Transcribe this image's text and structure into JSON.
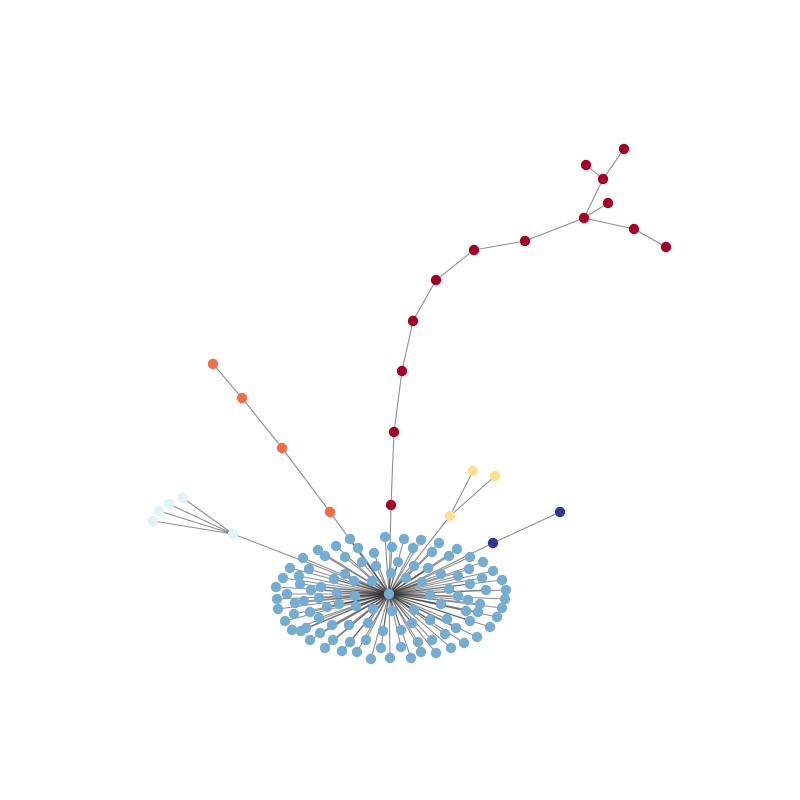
{
  "graph": {
    "colors": {
      "hub": "#74add1",
      "leaf": "#74add1",
      "red_chain": "#a50026",
      "orange_chain": "#f46d43",
      "pale_blue_group": "#e0f3f8",
      "yellow_group": "#fee090",
      "navy_group": "#313695",
      "edge": "#333333"
    }
  }
}
